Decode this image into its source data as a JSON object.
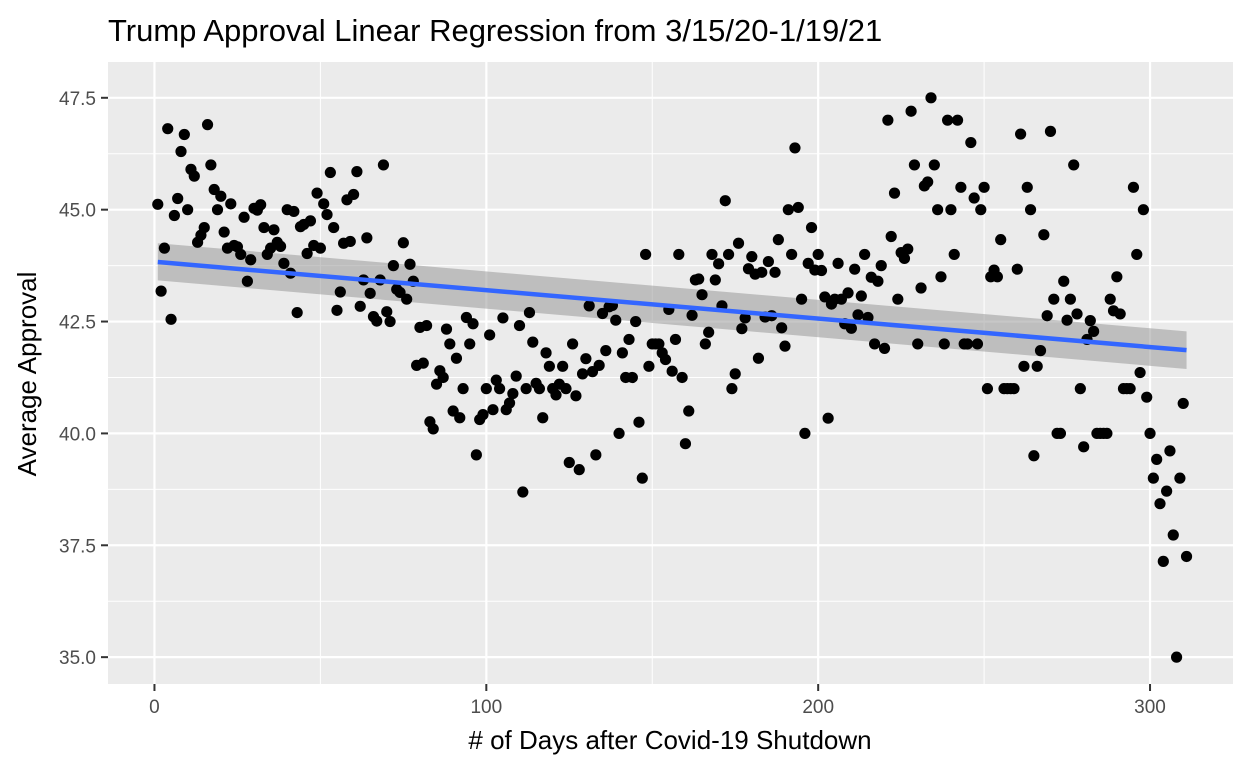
{
  "chart_data": {
    "type": "scatter",
    "title": "Trump Approval Linear Regression from 3/15/20-1/19/21",
    "xlabel": "# of Days after Covid-19 Shutdown",
    "ylabel": "Average Approval",
    "xlim": [
      -14,
      325
    ],
    "ylim": [
      34.4,
      48.3
    ],
    "xticks": [
      0,
      100,
      200,
      300
    ],
    "yticks": [
      35.0,
      37.5,
      40.0,
      42.5,
      45.0,
      47.5
    ],
    "xtick_labels": [
      "0",
      "100",
      "200",
      "300"
    ],
    "ytick_labels": [
      "35.0",
      "37.5",
      "40.0",
      "42.5",
      "45.0",
      "47.5"
    ],
    "grid": true,
    "legend": "none",
    "colors": {
      "panel_background": "#ebebeb",
      "grid": "#ffffff",
      "points": "#000000",
      "regression_line": "#3366ff",
      "confidence_band": "#999999"
    },
    "regression": {
      "x": [
        1,
        311
      ],
      "y": [
        43.83,
        41.86
      ],
      "ci_lower": [
        43.42,
        41.44
      ],
      "ci_upper": [
        44.25,
        42.28
      ]
    },
    "points": [
      [
        1,
        45.12
      ],
      [
        2,
        43.18
      ],
      [
        3,
        44.14
      ],
      [
        4,
        46.81
      ],
      [
        5,
        42.55
      ],
      [
        6,
        44.87
      ],
      [
        7,
        45.25
      ],
      [
        8,
        46.3
      ],
      [
        9,
        46.68
      ],
      [
        10,
        45.0
      ],
      [
        11,
        45.9
      ],
      [
        12,
        45.75
      ],
      [
        13,
        44.27
      ],
      [
        14,
        44.43
      ],
      [
        15,
        44.6
      ],
      [
        16,
        46.9
      ],
      [
        17,
        46.0
      ],
      [
        18,
        45.45
      ],
      [
        19,
        45.0
      ],
      [
        20,
        45.3
      ],
      [
        21,
        44.5
      ],
      [
        22,
        44.14
      ],
      [
        23,
        45.13
      ],
      [
        24,
        44.2
      ],
      [
        25,
        44.17
      ],
      [
        26,
        44.0
      ],
      [
        27,
        44.83
      ],
      [
        28,
        43.4
      ],
      [
        29,
        43.88
      ],
      [
        30,
        45.03
      ],
      [
        31,
        44.99
      ],
      [
        32,
        45.11
      ],
      [
        33,
        44.6
      ],
      [
        34,
        44.0
      ],
      [
        35,
        44.14
      ],
      [
        36,
        44.55
      ],
      [
        37,
        44.27
      ],
      [
        38,
        44.18
      ],
      [
        39,
        43.8
      ],
      [
        40,
        45.0
      ],
      [
        41,
        43.58
      ],
      [
        42,
        44.96
      ],
      [
        43,
        42.7
      ],
      [
        44,
        44.62
      ],
      [
        45,
        44.67
      ],
      [
        46,
        44.02
      ],
      [
        47,
        44.75
      ],
      [
        48,
        44.2
      ],
      [
        49,
        45.37
      ],
      [
        50,
        44.14
      ],
      [
        51,
        45.13
      ],
      [
        52,
        44.89
      ],
      [
        53,
        45.83
      ],
      [
        54,
        44.6
      ],
      [
        55,
        42.75
      ],
      [
        56,
        43.16
      ],
      [
        57,
        44.25
      ],
      [
        58,
        45.22
      ],
      [
        59,
        44.29
      ],
      [
        60,
        45.34
      ],
      [
        61,
        45.85
      ],
      [
        62,
        42.84
      ],
      [
        63,
        43.43
      ],
      [
        64,
        44.37
      ],
      [
        65,
        43.13
      ],
      [
        66,
        42.61
      ],
      [
        67,
        42.51
      ],
      [
        68,
        43.43
      ],
      [
        69,
        46.0
      ],
      [
        70,
        42.72
      ],
      [
        71,
        42.5
      ],
      [
        72,
        43.75
      ],
      [
        73,
        43.22
      ],
      [
        74,
        43.15
      ],
      [
        75,
        44.26
      ],
      [
        76,
        43.0
      ],
      [
        77,
        43.78
      ],
      [
        78,
        43.4
      ],
      [
        79,
        41.52
      ],
      [
        80,
        42.37
      ],
      [
        81,
        41.57
      ],
      [
        82,
        42.41
      ],
      [
        83,
        40.26
      ],
      [
        84,
        40.1
      ],
      [
        85,
        41.1
      ],
      [
        86,
        41.4
      ],
      [
        87,
        41.25
      ],
      [
        88,
        42.33
      ],
      [
        89,
        42.0
      ],
      [
        90,
        40.5
      ],
      [
        91,
        41.68
      ],
      [
        92,
        40.35
      ],
      [
        93,
        41.0
      ],
      [
        94,
        42.59
      ],
      [
        95,
        42.0
      ],
      [
        96,
        42.45
      ],
      [
        97,
        39.52
      ],
      [
        98,
        40.31
      ],
      [
        99,
        40.42
      ],
      [
        100,
        41.0
      ],
      [
        101,
        42.2
      ],
      [
        102,
        40.53
      ],
      [
        103,
        41.19
      ],
      [
        104,
        41.0
      ],
      [
        105,
        42.58
      ],
      [
        106,
        40.53
      ],
      [
        107,
        40.68
      ],
      [
        108,
        40.89
      ],
      [
        109,
        41.28
      ],
      [
        110,
        42.41
      ],
      [
        111,
        38.69
      ],
      [
        112,
        41.0
      ],
      [
        113,
        42.7
      ],
      [
        114,
        42.04
      ],
      [
        115,
        41.12
      ],
      [
        116,
        41.0
      ],
      [
        117,
        40.35
      ],
      [
        118,
        41.8
      ],
      [
        119,
        41.5
      ],
      [
        120,
        41.0
      ],
      [
        121,
        40.86
      ],
      [
        122,
        41.1
      ],
      [
        123,
        41.5
      ],
      [
        124,
        41.0
      ],
      [
        125,
        39.35
      ],
      [
        126,
        42.0
      ],
      [
        127,
        40.84
      ],
      [
        128,
        39.19
      ],
      [
        129,
        41.33
      ],
      [
        130,
        41.67
      ],
      [
        131,
        42.85
      ],
      [
        132,
        41.38
      ],
      [
        133,
        39.52
      ],
      [
        134,
        41.52
      ],
      [
        135,
        42.68
      ],
      [
        136,
        41.85
      ],
      [
        137,
        42.83
      ],
      [
        138,
        42.86
      ],
      [
        139,
        42.53
      ],
      [
        140,
        40.0
      ],
      [
        141,
        41.8
      ],
      [
        142,
        41.25
      ],
      [
        143,
        42.1
      ],
      [
        144,
        41.25
      ],
      [
        145,
        42.5
      ],
      [
        146,
        40.25
      ],
      [
        147,
        39.0
      ],
      [
        148,
        44.0
      ],
      [
        149,
        41.5
      ],
      [
        150,
        42.0
      ],
      [
        151,
        42.0
      ],
      [
        152,
        42.0
      ],
      [
        153,
        41.8
      ],
      [
        154,
        41.65
      ],
      [
        155,
        42.77
      ],
      [
        156,
        41.39
      ],
      [
        157,
        42.1
      ],
      [
        158,
        44.0
      ],
      [
        159,
        41.25
      ],
      [
        160,
        39.77
      ],
      [
        161,
        40.5
      ],
      [
        162,
        42.64
      ],
      [
        163,
        43.43
      ],
      [
        164,
        43.45
      ],
      [
        165,
        43.1
      ],
      [
        166,
        42.0
      ],
      [
        167,
        42.26
      ],
      [
        168,
        44.0
      ],
      [
        169,
        43.43
      ],
      [
        170,
        43.79
      ],
      [
        171,
        42.85
      ],
      [
        172,
        45.2
      ],
      [
        173,
        44.0
      ],
      [
        174,
        41.0
      ],
      [
        175,
        41.33
      ],
      [
        176,
        44.25
      ],
      [
        177,
        42.34
      ],
      [
        178,
        42.58
      ],
      [
        179,
        43.68
      ],
      [
        180,
        43.95
      ],
      [
        181,
        43.56
      ],
      [
        182,
        41.68
      ],
      [
        183,
        43.6
      ],
      [
        184,
        42.6
      ],
      [
        185,
        43.84
      ],
      [
        186,
        42.63
      ],
      [
        187,
        43.6
      ],
      [
        188,
        44.33
      ],
      [
        189,
        42.36
      ],
      [
        190,
        41.95
      ],
      [
        191,
        45.0
      ],
      [
        192,
        44.0
      ],
      [
        193,
        46.38
      ],
      [
        194,
        45.05
      ],
      [
        195,
        43.0
      ],
      [
        196,
        40.0
      ],
      [
        197,
        43.8
      ],
      [
        198,
        44.6
      ],
      [
        199,
        43.65
      ],
      [
        200,
        44.0
      ],
      [
        201,
        43.64
      ],
      [
        202,
        43.05
      ],
      [
        203,
        40.34
      ],
      [
        204,
        42.89
      ],
      [
        205,
        43.0
      ],
      [
        206,
        43.8
      ],
      [
        207,
        43.0
      ],
      [
        208,
        42.45
      ],
      [
        209,
        43.14
      ],
      [
        210,
        42.35
      ],
      [
        211,
        43.67
      ],
      [
        212,
        42.65
      ],
      [
        213,
        43.07
      ],
      [
        214,
        44.0
      ],
      [
        215,
        42.59
      ],
      [
        216,
        43.49
      ],
      [
        217,
        42.0
      ],
      [
        218,
        43.4
      ],
      [
        219,
        43.75
      ],
      [
        220,
        41.9
      ],
      [
        221,
        47.0
      ],
      [
        222,
        44.4
      ],
      [
        223,
        45.37
      ],
      [
        224,
        43.0
      ],
      [
        225,
        44.04
      ],
      [
        226,
        43.91
      ],
      [
        227,
        44.12
      ],
      [
        228,
        47.2
      ],
      [
        229,
        46.0
      ],
      [
        230,
        42.0
      ],
      [
        231,
        43.25
      ],
      [
        232,
        45.53
      ],
      [
        233,
        45.62
      ],
      [
        234,
        47.5
      ],
      [
        235,
        46.0
      ],
      [
        236,
        45.0
      ],
      [
        237,
        43.5
      ],
      [
        238,
        42.0
      ],
      [
        239,
        47.0
      ],
      [
        240,
        45.0
      ],
      [
        241,
        44.0
      ],
      [
        242,
        47.0
      ],
      [
        243,
        45.5
      ],
      [
        244,
        42.0
      ],
      [
        245,
        42.0
      ],
      [
        246,
        46.5
      ],
      [
        247,
        45.26
      ],
      [
        248,
        42.0
      ],
      [
        249,
        45.0
      ],
      [
        250,
        45.5
      ],
      [
        251,
        41.0
      ],
      [
        252,
        43.5
      ],
      [
        253,
        43.65
      ],
      [
        254,
        43.5
      ],
      [
        255,
        44.33
      ],
      [
        256,
        41.0
      ],
      [
        257,
        41.0
      ],
      [
        258,
        41.0
      ],
      [
        259,
        41.0
      ],
      [
        260,
        43.67
      ],
      [
        261,
        46.69
      ],
      [
        262,
        41.5
      ],
      [
        263,
        45.5
      ],
      [
        264,
        45.0
      ],
      [
        265,
        39.5
      ],
      [
        266,
        41.5
      ],
      [
        267,
        41.85
      ],
      [
        268,
        44.44
      ],
      [
        269,
        42.63
      ],
      [
        270,
        46.75
      ],
      [
        271,
        43.0
      ],
      [
        272,
        40.0
      ],
      [
        273,
        40.0
      ],
      [
        274,
        43.4
      ],
      [
        275,
        42.53
      ],
      [
        276,
        43.0
      ],
      [
        277,
        46.0
      ],
      [
        278,
        42.67
      ],
      [
        279,
        41.0
      ],
      [
        280,
        39.7
      ],
      [
        281,
        42.1
      ],
      [
        282,
        42.52
      ],
      [
        283,
        42.28
      ],
      [
        284,
        40.0
      ],
      [
        285,
        40.0
      ],
      [
        286,
        40.0
      ],
      [
        287,
        40.0
      ],
      [
        288,
        43.0
      ],
      [
        289,
        42.74
      ],
      [
        290,
        43.5
      ],
      [
        291,
        42.67
      ],
      [
        292,
        41.0
      ],
      [
        293,
        41.0
      ],
      [
        294,
        41.0
      ],
      [
        295,
        45.5
      ],
      [
        296,
        44.0
      ],
      [
        297,
        41.36
      ],
      [
        298,
        45.0
      ],
      [
        299,
        40.81
      ],
      [
        300,
        40.0
      ],
      [
        301,
        39.0
      ],
      [
        302,
        39.42
      ],
      [
        303,
        38.43
      ],
      [
        304,
        37.14
      ],
      [
        305,
        38.71
      ],
      [
        306,
        39.61
      ],
      [
        307,
        37.73
      ],
      [
        308,
        35.0
      ],
      [
        309,
        39.0
      ],
      [
        310,
        40.67
      ],
      [
        311,
        37.25
      ]
    ]
  }
}
